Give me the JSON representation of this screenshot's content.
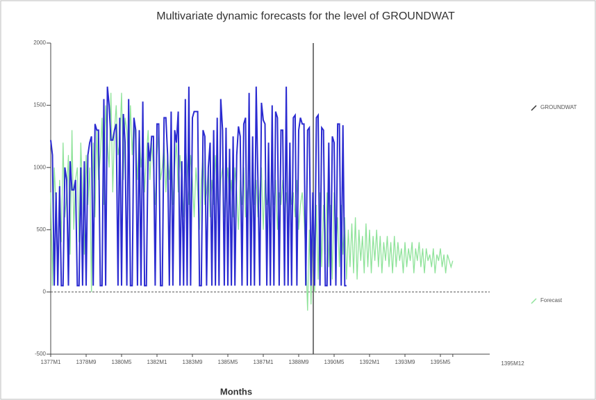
{
  "chart_data": {
    "type": "line",
    "title": "Multivariate dynamic forecasts for the level of GROUNDWAT",
    "x_label": "Months",
    "categories": [
      "1377M1",
      null,
      null,
      null,
      null,
      null,
      null,
      null,
      null,
      null,
      null,
      null,
      null,
      null,
      null,
      null,
      null,
      null,
      null,
      null,
      "1378M9",
      null,
      null,
      null,
      null,
      null,
      null,
      null,
      null,
      null,
      null,
      null,
      null,
      null,
      null,
      null,
      null,
      null,
      null,
      null,
      "1380M5",
      null,
      null,
      null,
      null,
      null,
      null,
      null,
      null,
      null,
      null,
      null,
      null,
      null,
      null,
      null,
      null,
      null,
      null,
      null,
      "1382M1",
      null,
      null,
      null,
      null,
      null,
      null,
      null,
      null,
      null,
      null,
      null,
      null,
      null,
      null,
      null,
      null,
      null,
      null,
      null,
      "1383M9",
      null,
      null,
      null,
      null,
      null,
      null,
      null,
      null,
      null,
      null,
      null,
      null,
      null,
      null,
      null,
      null,
      null,
      null,
      null,
      "1385M5",
      null,
      null,
      null,
      null,
      null,
      null,
      null,
      null,
      null,
      null,
      null,
      null,
      null,
      null,
      null,
      null,
      null,
      null,
      null,
      "1387M1",
      null,
      null,
      null,
      null,
      null,
      null,
      null,
      null,
      null,
      null,
      null,
      null,
      null,
      null,
      null,
      null,
      null,
      null,
      null,
      "1388M9",
      null,
      null,
      null,
      null,
      null,
      null,
      null,
      null,
      null,
      null,
      null,
      null,
      null,
      null,
      null,
      null,
      null,
      null,
      null,
      "1390M5",
      null,
      null,
      null,
      null,
      null,
      null,
      null,
      null,
      null,
      null,
      null,
      null,
      null,
      null,
      null,
      null,
      null,
      null,
      null,
      "1392M1",
      null,
      null,
      null,
      null,
      null,
      null,
      null,
      null,
      null,
      null,
      null,
      null,
      null,
      null,
      null,
      null,
      null,
      null,
      null,
      "1393M9",
      null,
      null,
      null,
      null,
      null,
      null,
      null,
      null,
      null,
      null,
      null,
      null,
      null,
      null,
      null,
      null,
      null,
      null,
      null,
      "1395M5",
      null,
      null,
      null,
      null,
      null,
      null,
      "1395M12"
    ],
    "series": [
      {
        "name": "GROUNDWAT",
        "color": "#2a2ad0",
        "values": [
          1220,
          1100,
          50,
          800,
          50,
          850,
          50,
          50,
          1000,
          900,
          50,
          1050,
          820,
          820,
          900,
          50,
          50,
          1000,
          50,
          1050,
          50,
          1100,
          1200,
          1250,
          50,
          1350,
          1300,
          1300,
          50,
          50,
          1550,
          50,
          1650,
          1500,
          1220,
          1220,
          1300,
          1350,
          50,
          1400,
          50,
          1430,
          1200,
          50,
          1550,
          50,
          50,
          1400,
          1300,
          50,
          1300,
          50,
          1530,
          50,
          50,
          1200,
          1050,
          1250,
          1250,
          50,
          1350,
          1350,
          50,
          50,
          1400,
          1400,
          1100,
          50,
          1450,
          50,
          1300,
          1200,
          1450,
          50,
          1050,
          50,
          1550,
          50,
          1650,
          50,
          1400,
          1450,
          1450,
          1450,
          50,
          50,
          1300,
          1250,
          50,
          1000,
          1200,
          50,
          1300,
          50,
          1400,
          50,
          1550,
          1300,
          50,
          1320,
          50,
          1150,
          50,
          1250,
          50,
          1100,
          1330,
          1250,
          50,
          1350,
          1400,
          50,
          1600,
          50,
          1250,
          50,
          1650,
          900,
          50,
          1520,
          1380,
          1350,
          50,
          1200,
          50,
          1500,
          50,
          1450,
          1400,
          50,
          1300,
          1300,
          50,
          1650,
          50,
          1200,
          50,
          1400,
          1420,
          50,
          1300,
          1400,
          1350,
          1350,
          50,
          1300,
          1320,
          50,
          800,
          50,
          1400,
          1420,
          50,
          1320,
          1300,
          50,
          50,
          1200,
          50,
          1250,
          1200,
          50,
          1350,
          1350,
          50,
          1340,
          50,
          50,
          null,
          null,
          null,
          null,
          null,
          null,
          null,
          null,
          null,
          null,
          null,
          null,
          null,
          null,
          null,
          null,
          null,
          null,
          null,
          null,
          null,
          null,
          null,
          null,
          null,
          null,
          null,
          null,
          null,
          null,
          null,
          null,
          null,
          null,
          null,
          null,
          null,
          null,
          null,
          null,
          null,
          null,
          null,
          null,
          null,
          null,
          null,
          null,
          null,
          null,
          null,
          null,
          null,
          null,
          null,
          null,
          null,
          null,
          null,
          null
        ]
      },
      {
        "name": "Forecast",
        "color": "#8fe39a",
        "values": [
          800,
          50,
          1000,
          700,
          100,
          900,
          400,
          1200,
          600,
          800,
          1100,
          300,
          1300,
          500,
          900,
          1000,
          400,
          1200,
          800,
          300,
          1100,
          700,
          1000,
          0,
          1200,
          600,
          1300,
          900,
          1100,
          1400,
          700,
          1500,
          1200,
          1000,
          1600,
          800,
          1300,
          1500,
          1100,
          1200,
          1600,
          900,
          1400,
          1300,
          1000,
          1500,
          1100,
          1400,
          1200,
          900,
          1300,
          1000,
          1200,
          800,
          1100,
          1300,
          900,
          1200,
          1000,
          700,
          1100,
          1300,
          900,
          1000,
          1200,
          800,
          1100,
          900,
          1300,
          700,
          1000,
          1200,
          800,
          1100,
          900,
          600,
          1200,
          1000,
          700,
          1100,
          900,
          600,
          1000,
          800,
          500,
          900,
          1100,
          700,
          800,
          1000,
          600,
          900,
          700,
          1100,
          800,
          500,
          900,
          1000,
          600,
          800,
          1000,
          700,
          900,
          600,
          1000,
          800,
          500,
          900,
          700,
          1000,
          600,
          800,
          900,
          500,
          1100,
          700,
          900,
          600,
          800,
          1000,
          500,
          900,
          700,
          800,
          600,
          1000,
          700,
          900,
          500,
          800,
          700,
          900,
          600,
          800,
          500,
          900,
          700,
          800,
          600,
          900,
          500,
          700,
          800,
          600,
          300,
          -150,
          500,
          -100,
          600,
          0,
          700,
          100,
          800,
          200,
          700,
          300,
          800,
          200,
          700,
          100,
          800,
          300,
          600,
          200,
          700,
          300,
          600,
          100,
          500,
          200,
          550,
          150,
          600,
          100,
          500,
          250,
          450,
          150,
          550,
          200,
          500,
          150,
          450,
          250,
          500,
          200,
          450,
          150,
          400,
          250,
          450,
          200,
          400,
          150,
          450,
          200,
          400,
          250,
          350,
          150,
          400,
          200,
          350,
          250,
          400,
          150,
          350,
          250,
          400,
          200,
          350,
          150,
          350,
          250,
          300,
          200,
          350,
          150,
          300,
          250,
          350,
          200,
          300,
          150,
          300,
          250,
          200,
          250
        ]
      }
    ],
    "ylim": [
      -500,
      2000
    ],
    "yticks": [
      -500,
      0,
      500,
      1000,
      1500,
      2000
    ],
    "zero_line": true,
    "legend": "right"
  }
}
